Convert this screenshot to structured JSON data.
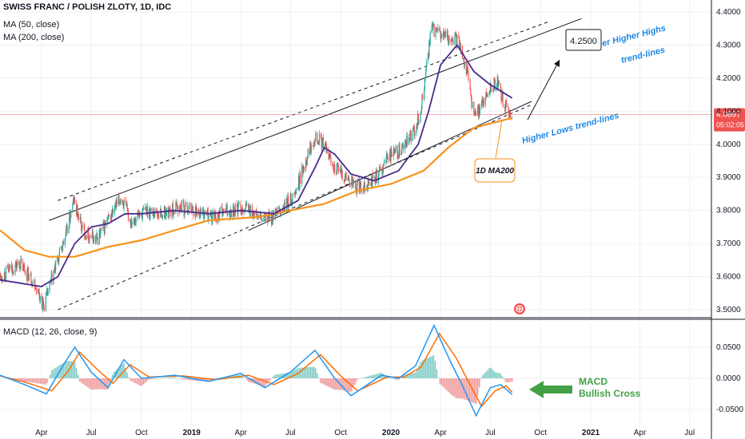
{
  "legend": {
    "symbol": "SWISS FRANC / POLISH ZLOTY, 1D, IDC",
    "ma50": "MA (50, close)",
    "ma200": "MA (200, close)",
    "macd": "MACD (12, 26, close, 9)"
  },
  "price_tag": {
    "value": "4.0897",
    "countdown": "05:02:05"
  },
  "annotations": {
    "target": "4.2500",
    "higher_highs_line1": "er Higher Highs",
    "higher_highs_line2": "trend-lines",
    "higher_lows": "Higher Lows trend-lines",
    "ma200_label": "1D MA200",
    "macd_line1": "MACD",
    "macd_line2": "Bullish Cross"
  },
  "colors": {
    "ma50": "#4a2a8c",
    "ma200": "#f7931a",
    "macd": "#2196f3",
    "signal": "#ff6d00",
    "up": "#26a69a",
    "down": "#ef5350",
    "annotation_blue": "#1e88e5",
    "annotation_green": "#43a047",
    "price_tag": "#ef5350"
  },
  "chart_data": [
    {
      "type": "candlestick",
      "title": "SWISS FRANC / POLISH ZLOTY, 1D, IDC",
      "x_ticks": [
        "Apr",
        "Jul",
        "Oct",
        "2019",
        "Apr",
        "Jul",
        "Oct",
        "2020",
        "Apr",
        "Jul",
        "Oct",
        "2021",
        "Apr",
        "Jul"
      ],
      "y_ticks": [
        "4.4000",
        "4.3000",
        "4.2000",
        "4.1000",
        "4.0000",
        "3.9000",
        "3.8000",
        "3.7000",
        "3.6000",
        "3.5000"
      ],
      "ylim": [
        3.49,
        4.41
      ],
      "last_price": 4.0897,
      "close_path": [
        [
          "2018-01-15",
          3.6
        ],
        [
          "2018-02-20",
          3.64
        ],
        [
          "2018-03-20",
          3.58
        ],
        [
          "2018-04-05",
          3.51
        ],
        [
          "2018-04-25",
          3.62
        ],
        [
          "2018-05-15",
          3.72
        ],
        [
          "2018-05-30",
          3.83
        ],
        [
          "2018-06-15",
          3.74
        ],
        [
          "2018-07-10",
          3.71
        ],
        [
          "2018-08-05",
          3.78
        ],
        [
          "2018-08-25",
          3.84
        ],
        [
          "2018-09-10",
          3.77
        ],
        [
          "2018-10-10",
          3.8
        ],
        [
          "2018-11-10",
          3.79
        ],
        [
          "2018-12-10",
          3.81
        ],
        [
          "2019-01-10",
          3.8
        ],
        [
          "2019-02-10",
          3.78
        ],
        [
          "2019-03-10",
          3.8
        ],
        [
          "2019-04-10",
          3.81
        ],
        [
          "2019-05-10",
          3.77
        ],
        [
          "2019-06-10",
          3.79
        ],
        [
          "2019-07-10",
          3.85
        ],
        [
          "2019-07-28",
          3.95
        ],
        [
          "2019-08-15",
          4.03
        ],
        [
          "2019-08-30",
          4.0
        ],
        [
          "2019-09-20",
          3.93
        ],
        [
          "2019-10-10",
          3.9
        ],
        [
          "2019-10-30",
          3.87
        ],
        [
          "2019-11-20",
          3.88
        ],
        [
          "2019-12-10",
          3.91
        ],
        [
          "2019-12-30",
          3.97
        ],
        [
          "2020-01-20",
          3.98
        ],
        [
          "2020-02-10",
          4.03
        ],
        [
          "2020-02-25",
          4.1
        ],
        [
          "2020-03-05",
          4.22
        ],
        [
          "2020-03-15",
          4.35
        ],
        [
          "2020-03-30",
          4.33
        ],
        [
          "2020-04-20",
          4.32
        ],
        [
          "2020-05-05",
          4.31
        ],
        [
          "2020-05-20",
          4.22
        ],
        [
          "2020-06-01",
          4.08
        ],
        [
          "2020-06-15",
          4.12
        ],
        [
          "2020-07-01",
          4.17
        ],
        [
          "2020-07-15",
          4.19
        ],
        [
          "2020-07-25",
          4.12
        ],
        [
          "2020-08-05",
          4.09
        ],
        [
          "2020-08-10",
          4.0897
        ]
      ],
      "ma50": [
        [
          "2018-01-15",
          3.59
        ],
        [
          "2018-04-01",
          3.57
        ],
        [
          "2018-05-01",
          3.6
        ],
        [
          "2018-06-01",
          3.7
        ],
        [
          "2018-07-01",
          3.75
        ],
        [
          "2018-08-01",
          3.76
        ],
        [
          "2018-09-01",
          3.79
        ],
        [
          "2018-10-01",
          3.79
        ],
        [
          "2018-12-01",
          3.8
        ],
        [
          "2019-02-01",
          3.79
        ],
        [
          "2019-04-01",
          3.8
        ],
        [
          "2019-06-01",
          3.79
        ],
        [
          "2019-07-15",
          3.83
        ],
        [
          "2019-08-15",
          3.93
        ],
        [
          "2019-09-01",
          3.99
        ],
        [
          "2019-09-20",
          3.97
        ],
        [
          "2019-10-20",
          3.91
        ],
        [
          "2019-12-01",
          3.89
        ],
        [
          "2020-01-15",
          3.92
        ],
        [
          "2020-02-20",
          4.0
        ],
        [
          "2020-03-10",
          4.1
        ],
        [
          "2020-04-01",
          4.24
        ],
        [
          "2020-05-01",
          4.3
        ],
        [
          "2020-06-01",
          4.22
        ],
        [
          "2020-07-01",
          4.18
        ],
        [
          "2020-08-10",
          4.14
        ]
      ],
      "ma200": [
        [
          "2018-01-15",
          3.74
        ],
        [
          "2018-03-01",
          3.68
        ],
        [
          "2018-04-15",
          3.66
        ],
        [
          "2018-06-01",
          3.66
        ],
        [
          "2018-08-01",
          3.69
        ],
        [
          "2018-10-01",
          3.71
        ],
        [
          "2018-12-01",
          3.74
        ],
        [
          "2019-02-01",
          3.77
        ],
        [
          "2019-05-01",
          3.78
        ],
        [
          "2019-07-01",
          3.8
        ],
        [
          "2019-09-01",
          3.82
        ],
        [
          "2019-11-01",
          3.86
        ],
        [
          "2020-01-01",
          3.88
        ],
        [
          "2020-03-01",
          3.92
        ],
        [
          "2020-04-15",
          3.99
        ],
        [
          "2020-06-01",
          4.05
        ],
        [
          "2020-08-10",
          4.08
        ]
      ],
      "trend_lines": {
        "higher_highs_upper": [
          [
            "2018-04-15",
            3.77
          ],
          [
            "2020-12-15",
            4.38
          ]
        ],
        "higher_highs_lower": [
          [
            "2018-05-01",
            3.83
          ],
          [
            "2020-10-15",
            4.37
          ]
        ],
        "higher_lows_upper": [
          [
            "2019-04-15",
            3.74
          ],
          [
            "2020-09-15",
            4.13
          ]
        ],
        "higher_lows_lower": [
          [
            "2018-05-01",
            3.5
          ],
          [
            "2020-09-15",
            4.12
          ]
        ]
      },
      "target": 4.25
    },
    {
      "type": "line",
      "title": "MACD (12, 26, close, 9)",
      "y_ticks": [
        "0.0500",
        "0.0000",
        "-0.0500"
      ],
      "ylim": [
        -0.068,
        0.085
      ],
      "series": [
        {
          "name": "MACD",
          "points": [
            [
              "2018-01-15",
              0.005
            ],
            [
              "2018-03-01",
              -0.01
            ],
            [
              "2018-04-10",
              -0.025
            ],
            [
              "2018-05-10",
              0.02
            ],
            [
              "2018-06-01",
              0.05
            ],
            [
              "2018-07-01",
              0.01
            ],
            [
              "2018-08-01",
              -0.015
            ],
            [
              "2018-08-30",
              0.03
            ],
            [
              "2018-10-01",
              0.0
            ],
            [
              "2018-12-01",
              0.005
            ],
            [
              "2019-02-01",
              -0.005
            ],
            [
              "2019-04-01",
              0.008
            ],
            [
              "2019-05-15",
              -0.015
            ],
            [
              "2019-07-01",
              0.01
            ],
            [
              "2019-08-15",
              0.045
            ],
            [
              "2019-09-20",
              0.0
            ],
            [
              "2019-10-20",
              -0.028
            ],
            [
              "2019-12-15",
              0.005
            ],
            [
              "2020-01-15",
              0.0
            ],
            [
              "2020-02-15",
              0.02
            ],
            [
              "2020-03-20",
              0.085
            ],
            [
              "2020-04-20",
              0.025
            ],
            [
              "2020-05-10",
              -0.01
            ],
            [
              "2020-06-05",
              -0.06
            ],
            [
              "2020-07-01",
              -0.015
            ],
            [
              "2020-07-20",
              -0.01
            ],
            [
              "2020-08-10",
              -0.026
            ]
          ]
        },
        {
          "name": "Signal",
          "points": [
            [
              "2018-01-15",
              0.004
            ],
            [
              "2018-03-01",
              -0.006
            ],
            [
              "2018-04-20",
              -0.02
            ],
            [
              "2018-05-20",
              0.012
            ],
            [
              "2018-06-10",
              0.042
            ],
            [
              "2018-07-15",
              0.012
            ],
            [
              "2018-08-10",
              -0.008
            ],
            [
              "2018-09-10",
              0.022
            ],
            [
              "2018-10-15",
              0.002
            ],
            [
              "2018-12-15",
              0.004
            ],
            [
              "2019-02-15",
              -0.002
            ],
            [
              "2019-04-15",
              0.005
            ],
            [
              "2019-06-01",
              -0.01
            ],
            [
              "2019-07-15",
              0.008
            ],
            [
              "2019-08-25",
              0.038
            ],
            [
              "2019-10-01",
              0.004
            ],
            [
              "2019-11-01",
              -0.02
            ],
            [
              "2019-12-25",
              0.002
            ],
            [
              "2020-01-25",
              0.002
            ],
            [
              "2020-02-25",
              0.018
            ],
            [
              "2020-03-30",
              0.072
            ],
            [
              "2020-04-30",
              0.032
            ],
            [
              "2020-05-20",
              -0.002
            ],
            [
              "2020-06-15",
              -0.045
            ],
            [
              "2020-07-10",
              -0.02
            ],
            [
              "2020-07-30",
              -0.012
            ],
            [
              "2020-08-10",
              -0.022
            ]
          ]
        }
      ]
    }
  ]
}
